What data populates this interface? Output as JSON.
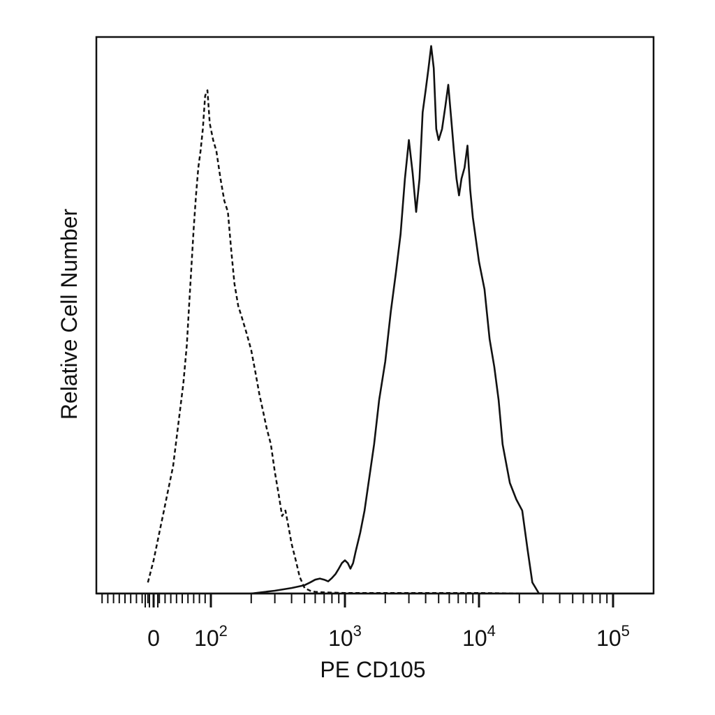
{
  "chart_data": {
    "type": "line",
    "xlabel": "PE CD105",
    "ylabel": "Relative Cell Number",
    "x_scale": "biexponential (linear near 0, log above)",
    "xlim": [
      -100,
      250000
    ],
    "ylim": [
      0,
      100
    ],
    "grid": false,
    "legend": "none",
    "x_ticks": [
      {
        "value": 0,
        "base": "0",
        "exp": ""
      },
      {
        "value": 100,
        "base": "10",
        "exp": "2"
      },
      {
        "value": 1000,
        "base": "10",
        "exp": "3"
      },
      {
        "value": 10000,
        "base": "10",
        "exp": "4"
      },
      {
        "value": 100000,
        "base": "10",
        "exp": "5"
      }
    ],
    "series": [
      {
        "style": "dashed",
        "color": "#111111",
        "x": [
          -10,
          0,
          10,
          18,
          26,
          34,
          40,
          46,
          52,
          58,
          62,
          66,
          70,
          74,
          78,
          82,
          86,
          90,
          94,
          98,
          104,
          110,
          118,
          126,
          134,
          142,
          150,
          160,
          170,
          185,
          200,
          215,
          230,
          245,
          260,
          280,
          300,
          320,
          340,
          360,
          380,
          400,
          430,
          460,
          500,
          550,
          600,
          700,
          1000,
          2000,
          5000,
          10000,
          20000
        ],
        "y": [
          2,
          6,
          11,
          15,
          19,
          23,
          28,
          33,
          38,
          45,
          52,
          59,
          66,
          72,
          77,
          80,
          84,
          90,
          91,
          85,
          82,
          80,
          75,
          71,
          69,
          62,
          56,
          52,
          50,
          47,
          44,
          40,
          36,
          33,
          30,
          27,
          22,
          18,
          14,
          15,
          12,
          9,
          6,
          3,
          1,
          0.5,
          0.3,
          0.2,
          0.1,
          0.1,
          0.1,
          0.1,
          0
        ]
      },
      {
        "style": "solid",
        "color": "#111111",
        "x": [
          200,
          300,
          400,
          500,
          550,
          600,
          650,
          700,
          750,
          800,
          850,
          900,
          950,
          1000,
          1050,
          1100,
          1150,
          1200,
          1300,
          1400,
          1500,
          1650,
          1800,
          2000,
          2200,
          2400,
          2600,
          2800,
          3000,
          3200,
          3400,
          3600,
          3800,
          4000,
          4200,
          4400,
          4600,
          4800,
          5000,
          5300,
          5600,
          5900,
          6200,
          6500,
          6800,
          7100,
          7400,
          7800,
          8200,
          8600,
          9000,
          10000,
          11000,
          12000,
          13000,
          14000,
          15000,
          17000,
          19000,
          21000,
          23000,
          25000,
          28000
        ],
        "y": [
          0,
          0.5,
          1,
          1.5,
          2,
          2.5,
          2.7,
          2.5,
          2.2,
          2.8,
          3.5,
          4.5,
          5.5,
          6,
          5.5,
          4.5,
          5.5,
          7.5,
          11,
          15,
          20,
          27,
          35,
          42,
          51,
          58,
          65,
          75,
          82,
          76,
          69,
          75,
          87,
          91,
          95,
          99,
          95,
          84,
          82,
          84,
          88,
          92,
          86,
          80,
          75,
          72,
          75,
          77,
          81,
          73,
          68,
          60,
          55,
          46,
          41,
          35,
          27,
          20,
          17,
          15,
          8,
          2,
          0
        ]
      }
    ]
  }
}
